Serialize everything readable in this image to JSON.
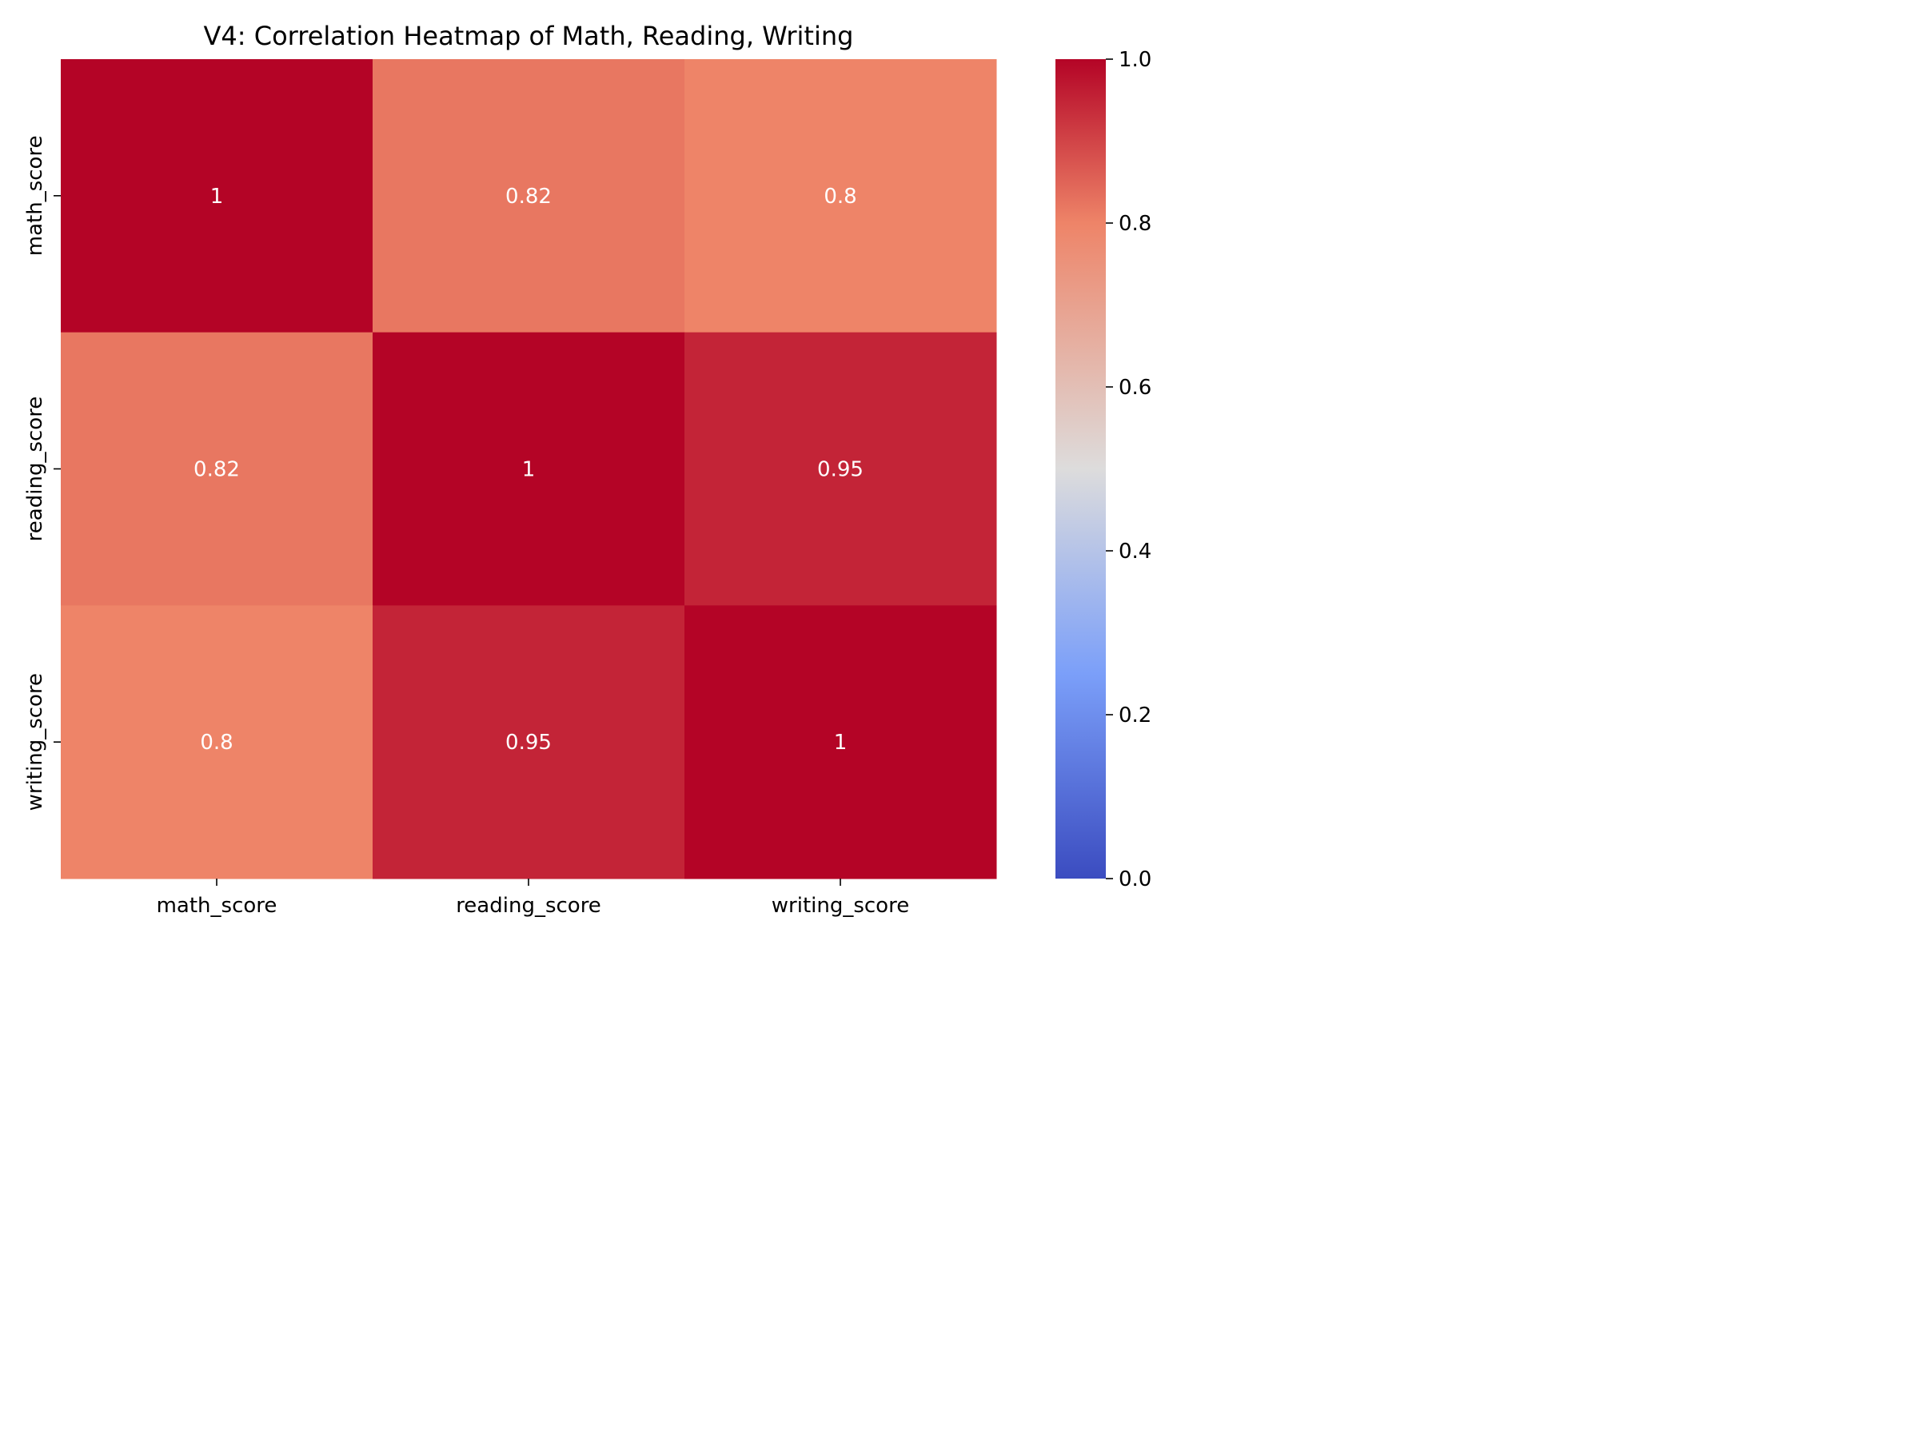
{
  "chart_data": {
    "type": "heatmap",
    "title": "V4: Correlation Heatmap of Math, Reading, Writing",
    "xlabel": "",
    "ylabel": "",
    "x_categories": [
      "math_score",
      "reading_score",
      "writing_score"
    ],
    "y_categories": [
      "math_score",
      "reading_score",
      "writing_score"
    ],
    "values": [
      [
        1.0,
        0.82,
        0.8
      ],
      [
        0.82,
        1.0,
        0.95
      ],
      [
        0.8,
        0.95,
        1.0
      ]
    ],
    "annotations": [
      [
        "1",
        "0.82",
        "0.8"
      ],
      [
        "0.82",
        "1",
        "0.95"
      ],
      [
        "0.8",
        "0.95",
        "1"
      ]
    ],
    "colormap": "coolwarm",
    "colorbar": {
      "range": [
        0.0,
        1.0
      ],
      "ticks": [
        0.0,
        0.2,
        0.4,
        0.6,
        0.8,
        1.0
      ],
      "tick_labels": [
        "0.0",
        "0.2",
        "0.4",
        "0.6",
        "0.8",
        "1.0"
      ]
    },
    "colormap_stops": [
      {
        "value": 0.0,
        "color": "#3b4cc0"
      },
      {
        "value": 0.25,
        "color": "#7b9ff9"
      },
      {
        "value": 0.5,
        "color": "#dddcdc"
      },
      {
        "value": 0.8,
        "color": "#ee8468"
      },
      {
        "value": 1.0,
        "color": "#b40426"
      }
    ]
  }
}
